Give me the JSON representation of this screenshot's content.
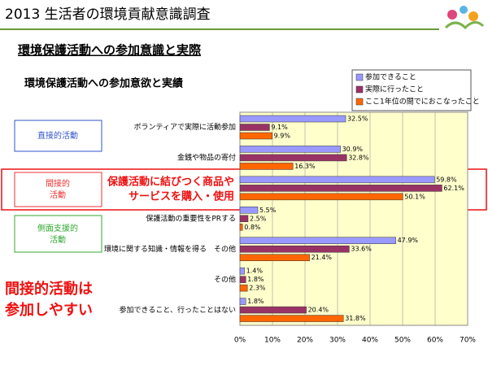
{
  "header": {
    "title": "2013 生活者の環境貢献意識調査"
  },
  "subtitle": "環境保護活動への参加意識と実際",
  "side_boxes": [
    "直接的活動",
    "間接的\n活動",
    "側面支援的\n活動"
  ],
  "conclusion": [
    "間接的活動は",
    "参加しやすい"
  ],
  "chart_data": {
    "type": "hbar",
    "title": "環境保護活動への参加意欲と実績",
    "categories": [
      "ボランティアで実際に活動参加",
      "金銭や物品の寄付",
      null,
      "保護活動の重要性をPRする",
      "環境に関する知識・情報を得る　その他",
      "その他",
      "参加できること、行ったことはない"
    ],
    "highlight_label": [
      "保護活動に結びつく商品や",
      "サービスを購入・使用"
    ],
    "series": [
      {
        "name": "参加できること",
        "color": "#9999ff",
        "values": [
          32.5,
          30.9,
          59.8,
          5.5,
          47.9,
          1.4,
          1.8
        ],
        "value_labels": [
          "32.5%",
          "30.9%",
          "59.8%",
          "5.5%",
          "47.9%",
          "1.4%",
          "1.8%"
        ]
      },
      {
        "name": "実際に行ったこと",
        "color": "#993366",
        "values": [
          9.1,
          32.8,
          62.1,
          2.5,
          33.6,
          1.8,
          20.4
        ],
        "value_labels": [
          "9.1%",
          "32.8%",
          "62.1%",
          "2.5%",
          "33.6%",
          "1.8%",
          "20.4%"
        ]
      },
      {
        "name": "ここ1年位の間でにおこなったこと",
        "color": "#ff6600",
        "values": [
          9.9,
          16.3,
          50.1,
          0.8,
          21.4,
          2.3,
          31.8
        ],
        "value_labels": [
          "9.9%",
          "16.3%",
          "50.1%",
          "0.8%",
          "21.4%",
          "2.3%",
          "31.8%"
        ]
      }
    ],
    "xlim": [
      0,
      70
    ],
    "xticks": [
      {
        "value": 0,
        "label": "0%"
      },
      {
        "value": 10,
        "label": "10%"
      },
      {
        "value": 20,
        "label": "20%"
      },
      {
        "value": 30,
        "label": "30%"
      },
      {
        "value": 40,
        "label": "40%"
      },
      {
        "value": 50,
        "label": "50%"
      },
      {
        "value": 60,
        "label": "60%"
      },
      {
        "value": 70,
        "label": "70%"
      }
    ],
    "grid": true
  }
}
